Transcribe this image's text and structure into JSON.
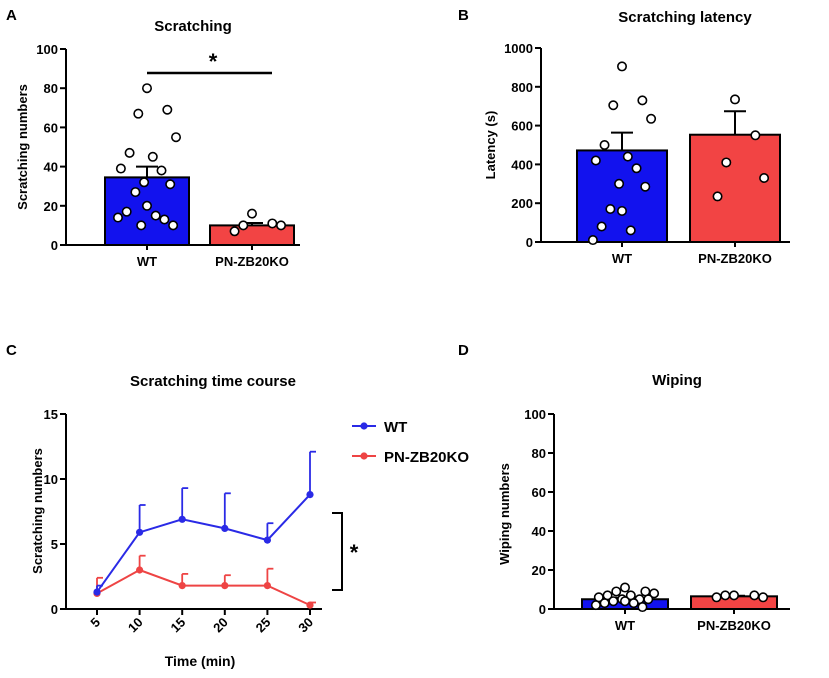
{
  "chart_data": [
    {
      "panel": "A",
      "type": "bar",
      "title": "Scratching",
      "ylabel": "Scratching numbers",
      "ylim": [
        0,
        100
      ],
      "yticks": [
        "0",
        "20",
        "40",
        "60",
        "80",
        "100"
      ],
      "categories": [
        "WT",
        "PN-ZB20KO"
      ],
      "values": [
        34.5,
        10
      ],
      "sem": [
        5.5,
        1.2
      ],
      "colors": [
        "#1212ee",
        "#f24444"
      ],
      "points": [
        [
          80,
          69,
          67,
          55,
          47,
          45,
          39,
          38,
          32,
          31,
          27,
          20,
          17,
          15,
          14,
          13,
          10,
          10
        ],
        [
          16,
          11,
          10,
          10,
          7
        ]
      ],
      "significance": "*"
    },
    {
      "panel": "B",
      "type": "bar",
      "title": "Scratching latency",
      "ylabel": "Latency (s)",
      "ylim": [
        0,
        1000
      ],
      "yticks": [
        "0",
        "200",
        "400",
        "600",
        "800",
        "1000"
      ],
      "categories": [
        "WT",
        "PN-ZB20KO"
      ],
      "values": [
        472,
        553
      ],
      "sem": [
        92,
        121
      ],
      "colors": [
        "#1212ee",
        "#f24444"
      ],
      "points": [
        [
          905,
          730,
          705,
          635,
          500,
          440,
          420,
          380,
          300,
          285,
          170,
          160,
          80,
          60,
          10
        ],
        [
          735,
          550,
          410,
          330,
          235
        ]
      ]
    },
    {
      "panel": "C",
      "type": "line",
      "title": "Scratching time course",
      "xlabel": "Time (min)",
      "ylabel": "Scratching numbers",
      "x": [
        5,
        10,
        15,
        20,
        25,
        30
      ],
      "xticks": [
        "5",
        "10",
        "15",
        "20",
        "25",
        "30"
      ],
      "ylim": [
        0,
        15
      ],
      "yticks": [
        "0",
        "5",
        "10",
        "15"
      ],
      "series": [
        {
          "name": "WT",
          "color": "#2a2ae6",
          "values": [
            1.3,
            5.9,
            6.9,
            6.2,
            5.3,
            8.8
          ],
          "sem": [
            0.5,
            2.1,
            2.4,
            2.7,
            1.3,
            3.3
          ]
        },
        {
          "name": "PN-ZB20KO",
          "color": "#ee4444",
          "values": [
            1.2,
            3.0,
            1.8,
            1.8,
            1.8,
            0.3
          ],
          "sem": [
            1.2,
            1.1,
            0.9,
            0.8,
            1.3,
            0.2
          ]
        }
      ],
      "significance": "*"
    },
    {
      "panel": "D",
      "type": "bar",
      "title": "Wiping",
      "ylabel": "Wiping numbers",
      "ylim": [
        0,
        100
      ],
      "yticks": [
        "0",
        "20",
        "40",
        "60",
        "80",
        "100"
      ],
      "categories": [
        "WT",
        "PN-ZB20KO"
      ],
      "values": [
        5,
        6.5
      ],
      "sem": [
        0.8,
        0.3
      ],
      "colors": [
        "#1212ee",
        "#f24444"
      ],
      "points": [
        [
          11,
          9,
          9,
          8,
          7,
          7,
          6,
          5,
          5,
          5,
          4,
          4,
          3,
          3,
          2,
          1
        ],
        [
          7,
          7,
          7,
          6,
          6
        ]
      ]
    }
  ]
}
